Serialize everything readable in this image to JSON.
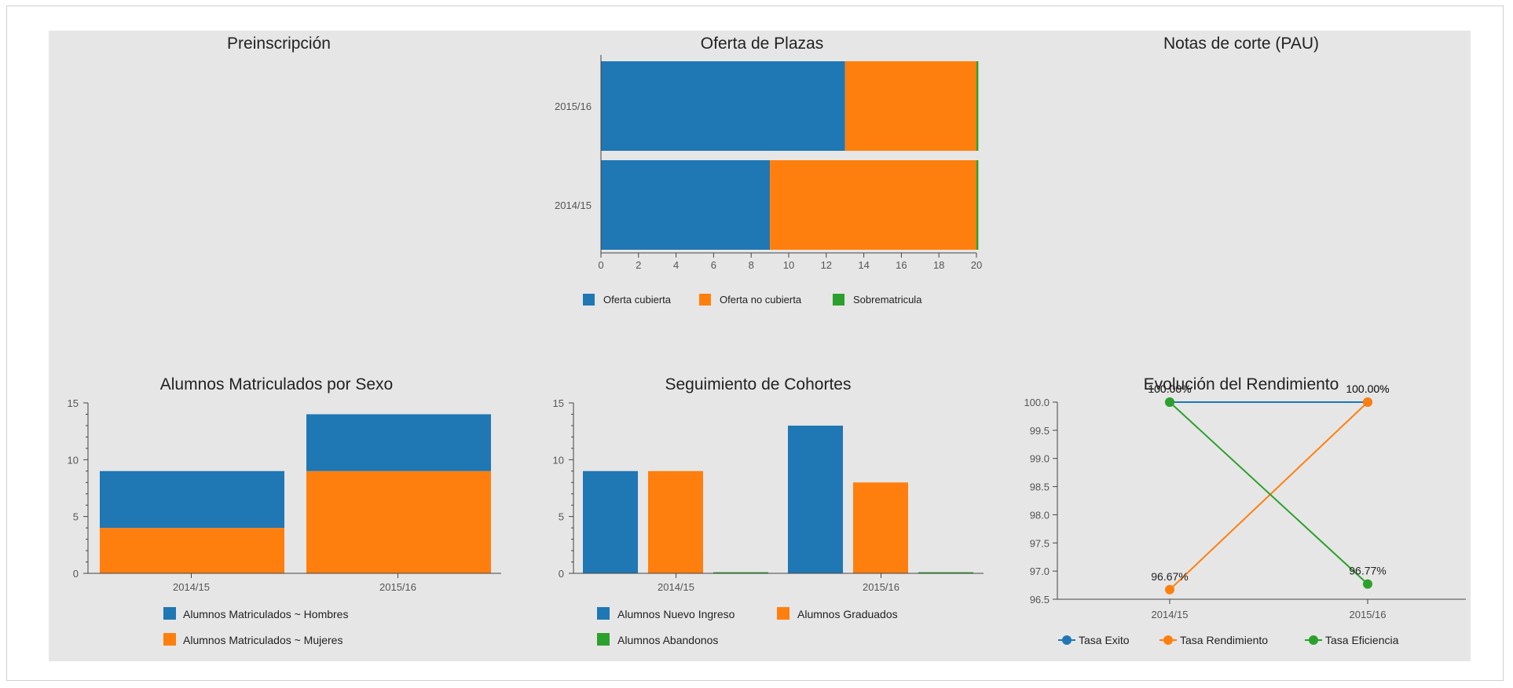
{
  "panels": {
    "preinscripcion_title": "Preinscripción",
    "notas_title": "Notas de corte (PAU)"
  },
  "chart_data": [
    {
      "id": "oferta",
      "type": "bar",
      "orientation": "horizontal",
      "stacked": true,
      "title": "Oferta de Plazas",
      "categories": [
        "2015/16",
        "2014/15"
      ],
      "series": [
        {
          "name": "Oferta cubierta",
          "color": "#1f77b4",
          "values": [
            13,
            9
          ]
        },
        {
          "name": "Oferta no cubierta",
          "color": "#ff7f0e",
          "values": [
            7,
            11
          ]
        },
        {
          "name": "Sobrematricula",
          "color": "#2ca02c",
          "values": [
            0.1,
            0.1
          ]
        }
      ],
      "xlim": [
        0,
        20
      ],
      "xticks": [
        "0",
        "2",
        "4",
        "6",
        "8",
        "10",
        "12",
        "14",
        "16",
        "18",
        "20"
      ],
      "legend": "bottom"
    },
    {
      "id": "sexo",
      "type": "bar",
      "stacked": true,
      "title": "Alumnos Matriculados por Sexo",
      "categories": [
        "2014/15",
        "2015/16"
      ],
      "series": [
        {
          "name": "Alumnos Matriculados ~ Mujeres",
          "color": "#ff7f0e",
          "values": [
            4,
            9
          ]
        },
        {
          "name": "Alumnos Matriculados ~ Hombres",
          "color": "#1f77b4",
          "values": [
            5,
            5
          ]
        }
      ],
      "legend_order": [
        "Alumnos Matriculados ~ Hombres",
        "Alumnos Matriculados ~ Mujeres"
      ],
      "ylim": [
        0,
        15
      ],
      "yticks": [
        "0",
        "5",
        "10",
        "15"
      ],
      "legend": "bottom"
    },
    {
      "id": "cohortes",
      "type": "bar",
      "stacked": false,
      "title": "Seguimiento de Cohortes",
      "categories": [
        "2014/15",
        "2015/16"
      ],
      "series": [
        {
          "name": "Alumnos Nuevo Ingreso",
          "color": "#1f77b4",
          "values": [
            9,
            13
          ]
        },
        {
          "name": "Alumnos Graduados",
          "color": "#ff7f0e",
          "values": [
            9,
            8
          ]
        },
        {
          "name": "Alumnos Abandonos",
          "color": "#2ca02c",
          "values": [
            0.1,
            0.1
          ]
        }
      ],
      "ylim": [
        0,
        15
      ],
      "yticks": [
        "0",
        "5",
        "10",
        "15"
      ],
      "legend": "bottom"
    },
    {
      "id": "rendimiento",
      "type": "line",
      "title": "Evolución del Rendimiento",
      "categories": [
        "2014/15",
        "2015/16"
      ],
      "series": [
        {
          "name": "Tasa Exito",
          "color": "#1f77b4",
          "values": [
            100,
            100
          ],
          "labels": [
            "100.00%",
            "100.00%"
          ]
        },
        {
          "name": "Tasa Rendimiento",
          "color": "#ff7f0e",
          "values": [
            96.67,
            100
          ],
          "labels": [
            "96.67%",
            "100.00%"
          ]
        },
        {
          "name": "Tasa Eficiencia",
          "color": "#2ca02c",
          "values": [
            100,
            96.77
          ],
          "labels": [
            "100.00%",
            "96.77%"
          ]
        }
      ],
      "ylim": [
        96.5,
        100
      ],
      "yticks": [
        "96.5",
        "97.0",
        "97.5",
        "98.0",
        "98.5",
        "99.0",
        "99.5",
        "100.0"
      ],
      "legend": "bottom"
    }
  ]
}
